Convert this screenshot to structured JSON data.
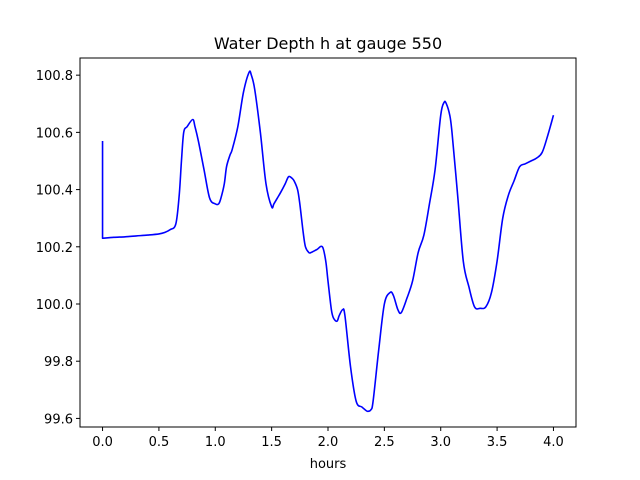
{
  "chart_data": {
    "type": "line",
    "title": "Water Depth h at gauge 550",
    "xlabel": "hours",
    "ylabel": "",
    "xlim": [
      -0.2,
      4.2
    ],
    "ylim": [
      99.57,
      100.86
    ],
    "xticks": [
      "0.0",
      "0.5",
      "1.0",
      "1.5",
      "2.0",
      "2.5",
      "3.0",
      "3.5",
      "4.0"
    ],
    "yticks": [
      "99.6",
      "99.8",
      "100.0",
      "100.2",
      "100.4",
      "100.6",
      "100.8"
    ],
    "grid": false,
    "legend": "none",
    "series": [
      {
        "color": "#0000ff",
        "x": [
          0.0,
          0.0,
          0.1,
          0.2,
          0.3,
          0.4,
          0.5,
          0.55,
          0.6,
          0.65,
          0.68,
          0.7,
          0.72,
          0.75,
          0.8,
          0.82,
          0.85,
          0.9,
          0.95,
          1.0,
          1.03,
          1.05,
          1.08,
          1.1,
          1.13,
          1.15,
          1.2,
          1.25,
          1.3,
          1.32,
          1.35,
          1.4,
          1.45,
          1.5,
          1.52,
          1.55,
          1.58,
          1.62,
          1.65,
          1.68,
          1.7,
          1.73,
          1.75,
          1.78,
          1.8,
          1.83,
          1.85,
          1.9,
          1.95,
          1.98,
          2.0,
          2.03,
          2.05,
          2.08,
          2.1,
          2.13,
          2.15,
          2.2,
          2.25,
          2.3,
          2.33,
          2.35,
          2.38,
          2.4,
          2.45,
          2.5,
          2.55,
          2.58,
          2.62,
          2.65,
          2.7,
          2.75,
          2.8,
          2.85,
          2.9,
          2.95,
          3.0,
          3.03,
          3.05,
          3.08,
          3.1,
          3.15,
          3.2,
          3.25,
          3.3,
          3.35,
          3.4,
          3.45,
          3.5,
          3.55,
          3.6,
          3.65,
          3.7,
          3.75,
          3.8,
          3.85,
          3.9,
          3.95,
          4.0
        ],
        "y": [
          100.57,
          100.23,
          100.233,
          100.235,
          100.238,
          100.241,
          100.245,
          100.25,
          100.26,
          100.28,
          100.38,
          100.5,
          100.6,
          100.62,
          100.645,
          100.62,
          100.57,
          100.47,
          100.37,
          100.35,
          100.35,
          100.37,
          100.42,
          100.48,
          100.52,
          100.54,
          100.62,
          100.74,
          100.81,
          100.8,
          100.75,
          100.6,
          100.42,
          100.34,
          100.35,
          100.37,
          100.39,
          100.42,
          100.445,
          100.44,
          100.43,
          100.4,
          100.35,
          100.25,
          100.2,
          100.18,
          100.18,
          100.19,
          100.2,
          100.15,
          100.08,
          99.98,
          99.95,
          99.94,
          99.96,
          99.98,
          99.96,
          99.78,
          99.66,
          99.64,
          99.63,
          99.625,
          99.63,
          99.66,
          99.84,
          100.0,
          100.04,
          100.03,
          99.98,
          99.97,
          100.02,
          100.08,
          100.18,
          100.24,
          100.35,
          100.47,
          100.66,
          100.705,
          100.7,
          100.66,
          100.6,
          100.38,
          100.15,
          100.06,
          99.99,
          99.985,
          99.99,
          100.04,
          100.15,
          100.3,
          100.38,
          100.43,
          100.48,
          100.49,
          100.5,
          100.51,
          100.53,
          100.59,
          100.66
        ]
      }
    ]
  }
}
